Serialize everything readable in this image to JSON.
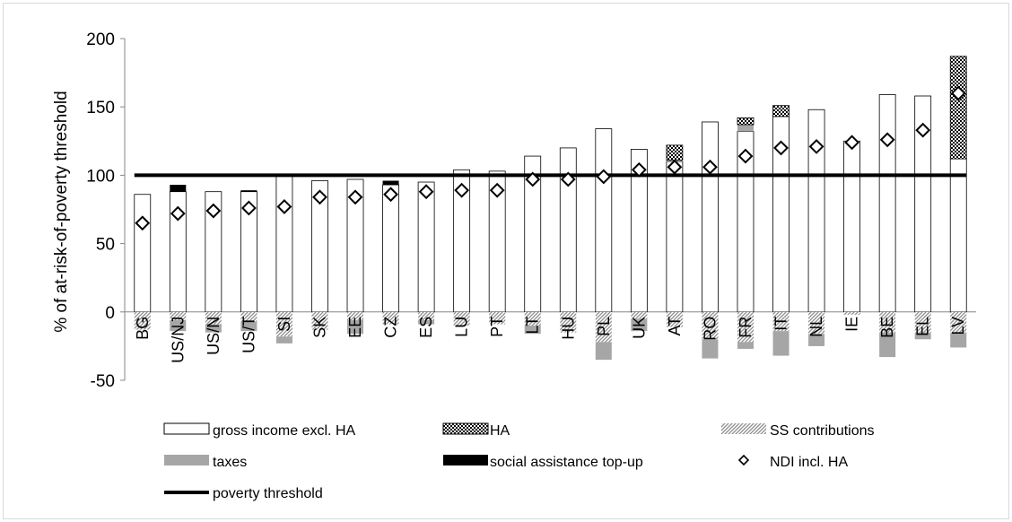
{
  "chart_data": {
    "type": "bar",
    "stacked": true,
    "ylabel": "% of at-risk-of-poverty threshold",
    "ylim": [
      -50,
      200
    ],
    "yticks": [
      "-50",
      "0",
      "50",
      "100",
      "150",
      "200"
    ],
    "ytick_values": [
      -50,
      0,
      50,
      100,
      150,
      200
    ],
    "grid": false,
    "legend_position": "bottom",
    "categories": [
      "BG",
      "US/NJ",
      "US/N",
      "US/T",
      "SI",
      "SK",
      "EE",
      "CZ",
      "ES",
      "LU",
      "PT",
      "LT",
      "HU",
      "PL",
      "UK",
      "AT",
      "RO",
      "FR",
      "IT",
      "NL",
      "IE",
      "BE",
      "EL",
      "LV"
    ],
    "series": [
      {
        "name": "gross income excl. HA",
        "kind": "bar",
        "color": "#ffffff",
        "pattern": "none",
        "values": [
          86,
          88,
          88,
          88,
          100,
          96,
          97,
          93,
          95,
          104,
          103,
          114,
          120,
          134,
          119,
          110,
          139,
          132,
          143,
          148,
          125,
          159,
          158,
          112
        ]
      },
      {
        "name": "HA",
        "kind": "bar",
        "color": "#000000",
        "pattern": "checker",
        "values": [
          0,
          0,
          0,
          0,
          0,
          0,
          0,
          0,
          0,
          0,
          0,
          0,
          0,
          0,
          0,
          11,
          0,
          5,
          8,
          0,
          0,
          0,
          0,
          75
        ]
      },
      {
        "name": "SS contributions",
        "kind": "bar",
        "color": "#888888",
        "pattern": "diagonal",
        "values": [
          -13,
          -6,
          -9,
          -7,
          -18,
          -13,
          -6,
          -9,
          -6,
          -10,
          -9,
          -10,
          -15,
          -22,
          -5,
          -11,
          -20,
          -22,
          -14,
          -16,
          -2,
          -15,
          -15,
          -15
        ]
      },
      {
        "name": "taxes",
        "kind": "bar",
        "color": "#a6a6a6",
        "pattern": "none",
        "values": [
          0,
          -8,
          -6,
          -7,
          -5,
          0,
          -10,
          0,
          -3,
          0,
          0,
          -6,
          0,
          -13,
          -9,
          0,
          -14,
          -5,
          -18,
          -9,
          0,
          -18,
          -5,
          -11
        ],
        "positive_values": [
          0,
          0,
          0,
          0,
          0,
          0,
          0,
          0,
          0,
          0,
          0,
          0,
          0,
          0,
          0,
          1,
          0,
          5,
          0,
          0,
          0,
          0,
          0,
          0
        ]
      },
      {
        "name": "social assistance top-up",
        "kind": "bar",
        "color": "#000000",
        "pattern": "solid",
        "values": [
          0,
          5,
          0,
          1,
          0,
          0,
          0,
          3,
          0,
          0,
          0,
          0,
          0,
          0,
          0,
          0,
          0,
          0,
          0,
          0,
          0,
          0,
          0,
          0
        ]
      },
      {
        "name": "NDI incl. HA",
        "kind": "marker",
        "marker": "diamond",
        "values": [
          65,
          72,
          74,
          76,
          77,
          84,
          84,
          86,
          88,
          89,
          89,
          97,
          97,
          99,
          104,
          106,
          106,
          114,
          120,
          121,
          124,
          126,
          133,
          160
        ]
      },
      {
        "name": "poverty threshold",
        "kind": "line",
        "color": "#000000",
        "value": 100
      }
    ]
  }
}
